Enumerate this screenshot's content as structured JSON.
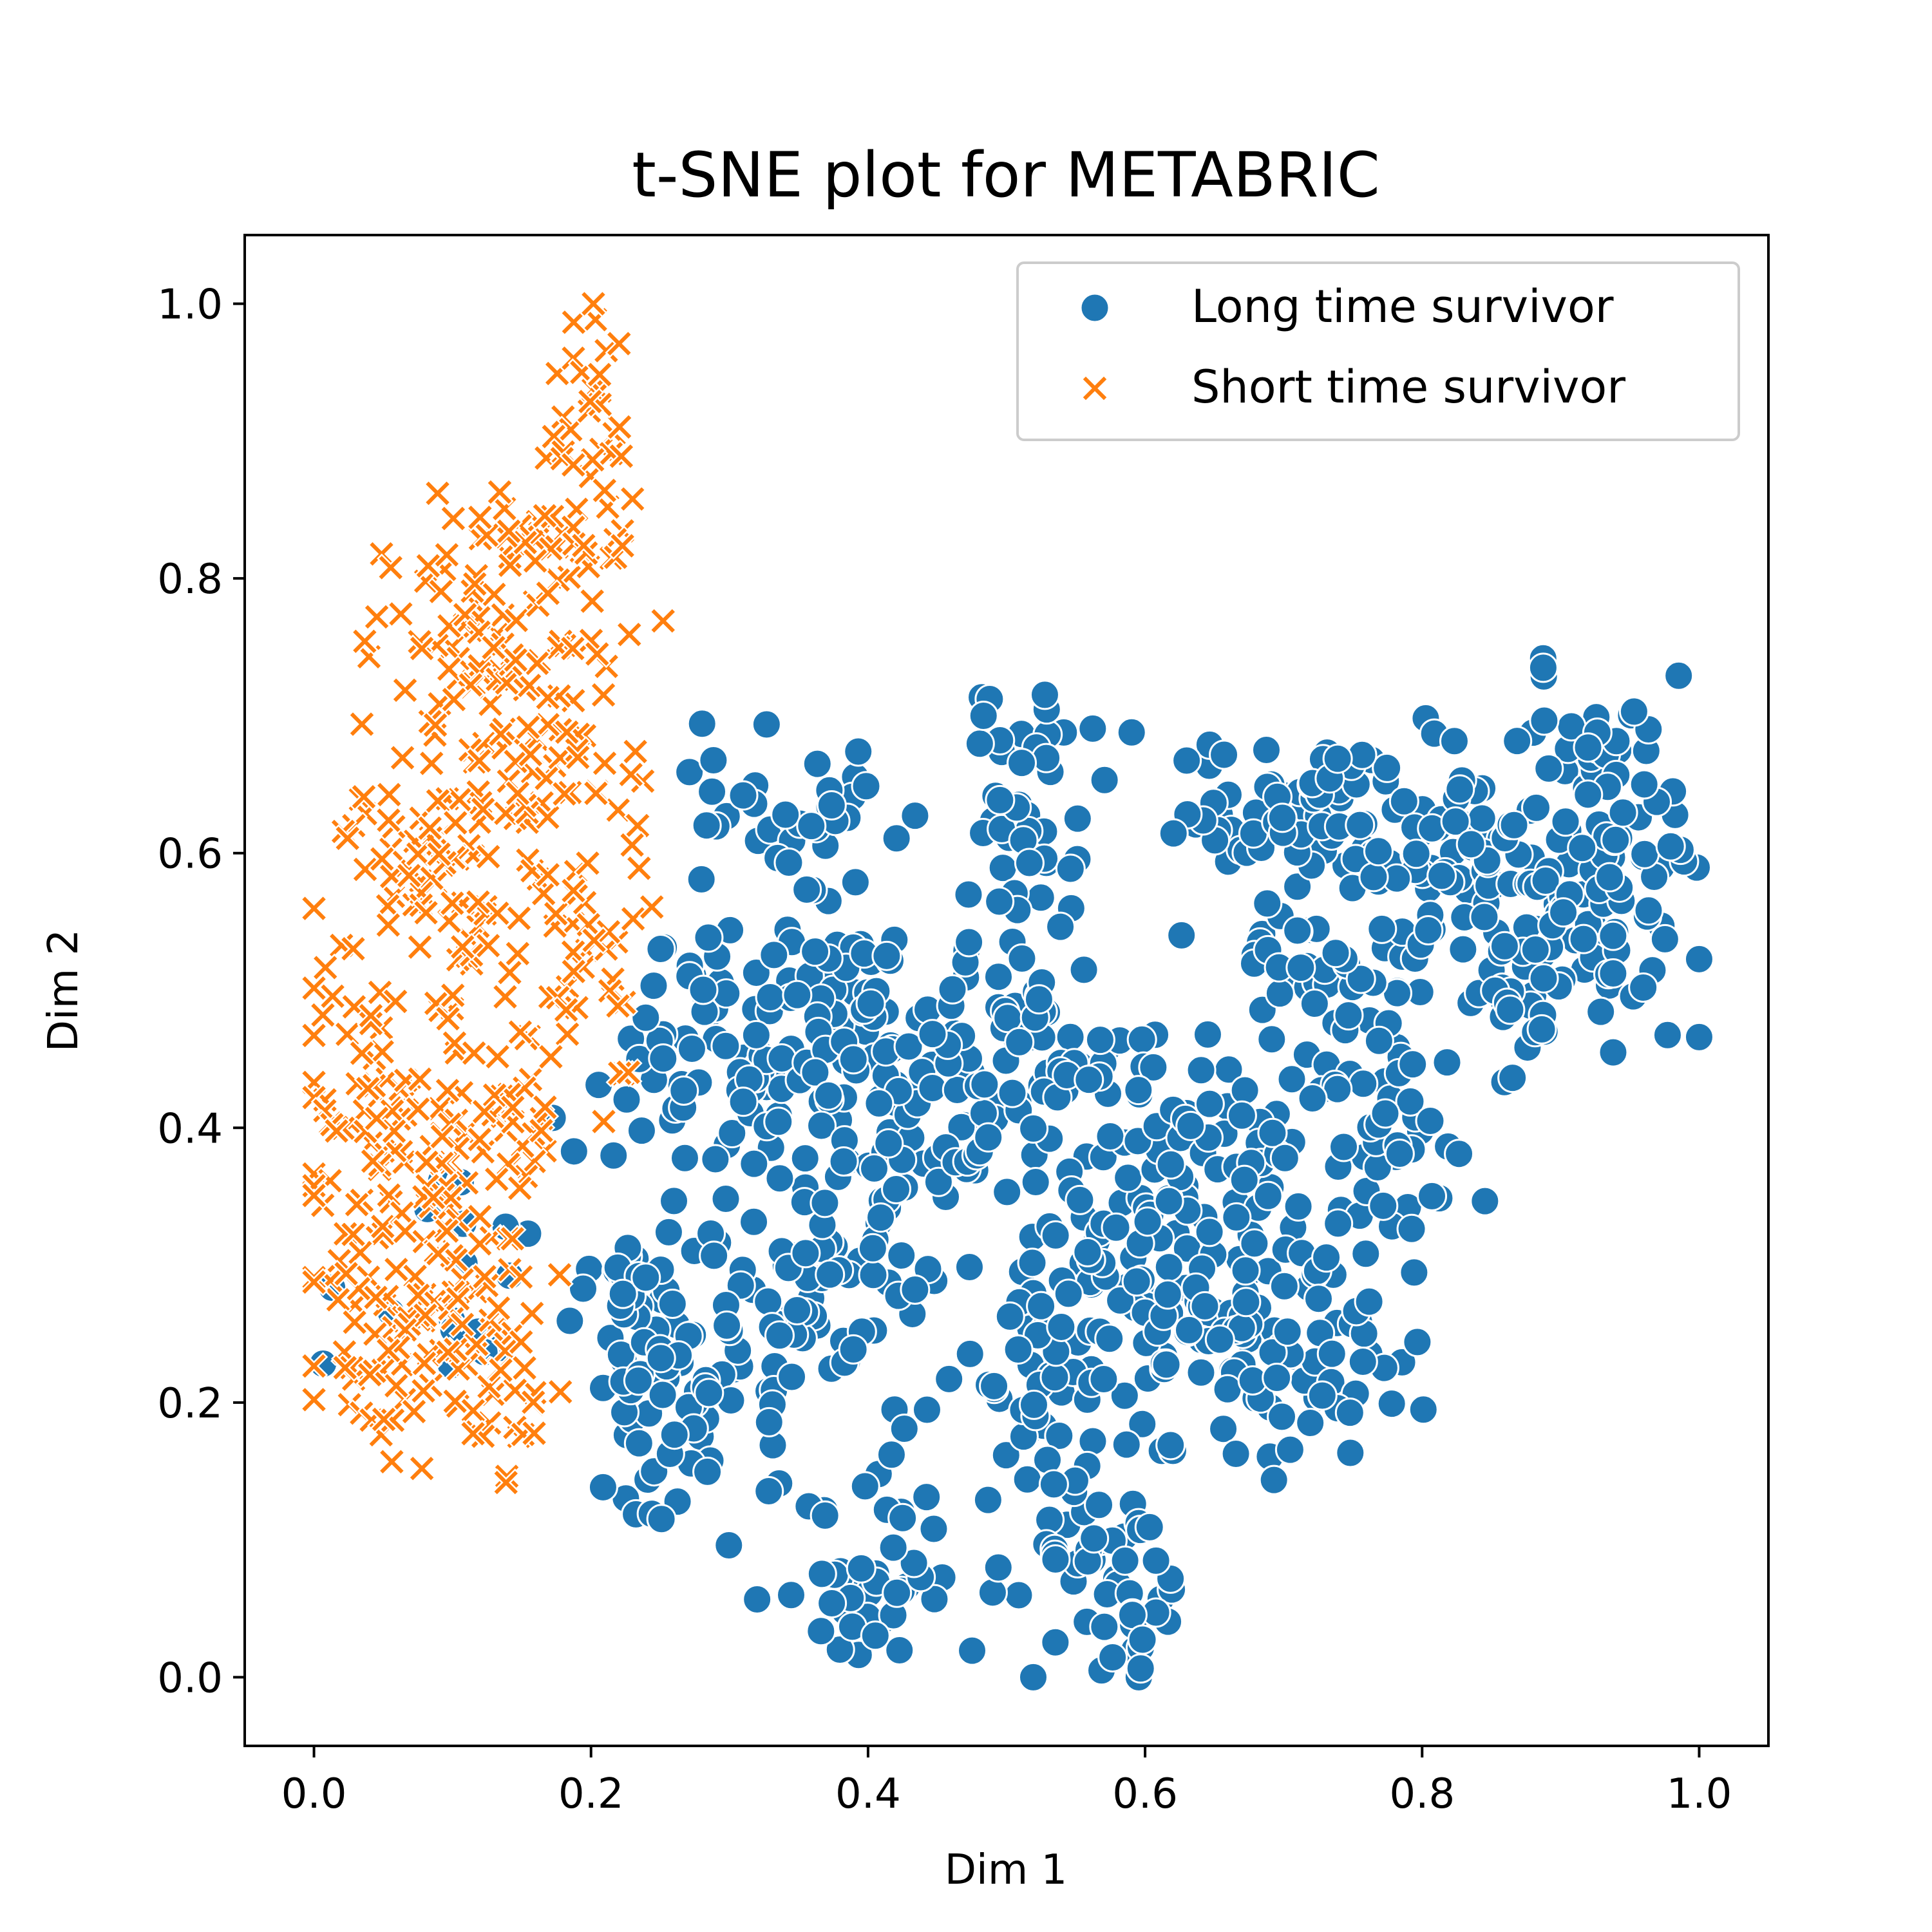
{
  "chart_data": {
    "type": "scatter",
    "title": "t-SNE plot for METABRIC",
    "xlabel": "Dim 1",
    "ylabel": "Dim 2",
    "xlim": [
      -0.05,
      1.05
    ],
    "ylim": [
      -0.05,
      1.05
    ],
    "xticks": [
      0.0,
      0.2,
      0.4,
      0.6,
      0.8,
      1.0
    ],
    "yticks": [
      0.0,
      0.2,
      0.4,
      0.6,
      0.8,
      1.0
    ],
    "xtick_labels": [
      "0.0",
      "0.2",
      "0.4",
      "0.6",
      "0.8",
      "1.0"
    ],
    "ytick_labels": [
      "0.0",
      "0.2",
      "0.4",
      "0.6",
      "0.8",
      "1.0"
    ],
    "grid": false,
    "legend_position": "top-right",
    "series": [
      {
        "name": "Long time survivor",
        "marker": "circle",
        "color": "#1f77b4",
        "clusters": [
          {
            "cx": 0.34,
            "cy": 0.62,
            "sx": 0.035,
            "sy": 0.04,
            "n": 40
          },
          {
            "cx": 0.3,
            "cy": 0.45,
            "sx": 0.045,
            "sy": 0.05,
            "n": 80
          },
          {
            "cx": 0.38,
            "cy": 0.47,
            "sx": 0.035,
            "sy": 0.04,
            "n": 60
          },
          {
            "cx": 0.35,
            "cy": 0.28,
            "sx": 0.04,
            "sy": 0.06,
            "n": 70
          },
          {
            "cx": 0.27,
            "cy": 0.18,
            "sx": 0.035,
            "sy": 0.04,
            "n": 40
          },
          {
            "cx": 0.41,
            "cy": 0.08,
            "sx": 0.03,
            "sy": 0.04,
            "n": 45
          },
          {
            "cx": 0.44,
            "cy": 0.4,
            "sx": 0.04,
            "sy": 0.06,
            "n": 60
          },
          {
            "cx": 0.52,
            "cy": 0.62,
            "sx": 0.025,
            "sy": 0.05,
            "n": 50
          },
          {
            "cx": 0.52,
            "cy": 0.45,
            "sx": 0.03,
            "sy": 0.05,
            "n": 60
          },
          {
            "cx": 0.53,
            "cy": 0.22,
            "sx": 0.03,
            "sy": 0.06,
            "n": 60
          },
          {
            "cx": 0.57,
            "cy": 0.07,
            "sx": 0.035,
            "sy": 0.04,
            "n": 50
          },
          {
            "cx": 0.6,
            "cy": 0.32,
            "sx": 0.03,
            "sy": 0.07,
            "n": 60
          },
          {
            "cx": 0.66,
            "cy": 0.38,
            "sx": 0.035,
            "sy": 0.05,
            "n": 50
          },
          {
            "cx": 0.67,
            "cy": 0.24,
            "sx": 0.035,
            "sy": 0.04,
            "n": 40
          },
          {
            "cx": 0.73,
            "cy": 0.25,
            "sx": 0.04,
            "sy": 0.05,
            "n": 50
          },
          {
            "cx": 0.78,
            "cy": 0.38,
            "sx": 0.035,
            "sy": 0.05,
            "n": 45
          },
          {
            "cx": 0.74,
            "cy": 0.52,
            "sx": 0.04,
            "sy": 0.04,
            "n": 50
          },
          {
            "cx": 0.72,
            "cy": 0.63,
            "sx": 0.05,
            "sy": 0.035,
            "n": 70
          },
          {
            "cx": 0.83,
            "cy": 0.6,
            "sx": 0.04,
            "sy": 0.04,
            "n": 60
          },
          {
            "cx": 0.87,
            "cy": 0.52,
            "sx": 0.03,
            "sy": 0.04,
            "n": 40
          },
          {
            "cx": 0.94,
            "cy": 0.57,
            "sx": 0.035,
            "sy": 0.05,
            "n": 70
          },
          {
            "cx": 0.92,
            "cy": 0.68,
            "sx": 0.03,
            "sy": 0.03,
            "n": 25
          },
          {
            "cx": 0.23,
            "cy": 0.26,
            "sx": 0.03,
            "sy": 0.04,
            "n": 40
          },
          {
            "cx": 0.13,
            "cy": 0.35,
            "sx": 0.04,
            "sy": 0.05,
            "n": 10
          },
          {
            "cx": 0.1,
            "cy": 0.24,
            "sx": 0.05,
            "sy": 0.03,
            "n": 8
          }
        ],
        "seed": 7
      },
      {
        "name": "Short time survivor",
        "marker": "x",
        "color": "#ff7f0e",
        "clusters": [
          {
            "cx": 0.2,
            "cy": 0.93,
            "sx": 0.015,
            "sy": 0.04,
            "n": 25
          },
          {
            "cx": 0.17,
            "cy": 0.82,
            "sx": 0.035,
            "sy": 0.04,
            "n": 50
          },
          {
            "cx": 0.11,
            "cy": 0.75,
            "sx": 0.035,
            "sy": 0.05,
            "n": 60
          },
          {
            "cx": 0.17,
            "cy": 0.68,
            "sx": 0.035,
            "sy": 0.04,
            "n": 50
          },
          {
            "cx": 0.07,
            "cy": 0.6,
            "sx": 0.03,
            "sy": 0.04,
            "n": 40
          },
          {
            "cx": 0.13,
            "cy": 0.55,
            "sx": 0.035,
            "sy": 0.04,
            "n": 50
          },
          {
            "cx": 0.21,
            "cy": 0.52,
            "sx": 0.02,
            "sy": 0.04,
            "n": 25
          },
          {
            "cx": 0.04,
            "cy": 0.45,
            "sx": 0.03,
            "sy": 0.04,
            "n": 50
          },
          {
            "cx": 0.12,
            "cy": 0.4,
            "sx": 0.035,
            "sy": 0.04,
            "n": 50
          },
          {
            "cx": 0.05,
            "cy": 0.33,
            "sx": 0.03,
            "sy": 0.04,
            "n": 50
          },
          {
            "cx": 0.11,
            "cy": 0.28,
            "sx": 0.035,
            "sy": 0.04,
            "n": 50
          },
          {
            "cx": 0.06,
            "cy": 0.22,
            "sx": 0.03,
            "sy": 0.03,
            "n": 35
          },
          {
            "cx": 0.15,
            "cy": 0.2,
            "sx": 0.02,
            "sy": 0.03,
            "n": 20
          },
          {
            "cx": 0.24,
            "cy": 0.62,
            "sx": 0.01,
            "sy": 0.02,
            "n": 6
          }
        ],
        "seed": 13
      }
    ]
  },
  "colors": {
    "long": "#1f77b4",
    "short": "#ff7f0e",
    "axes": "#000000",
    "background": "#ffffff"
  }
}
